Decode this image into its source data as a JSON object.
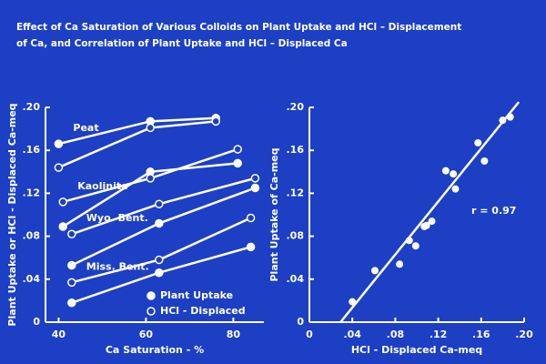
{
  "title": [
    "Effect of Ca Saturation of Various Colloids on Plant Uptake and HCl – Displacement",
    "of Ca, and Correlation of Plant Uptake and HCl – Displaced Ca"
  ],
  "chart_data": [
    {
      "type": "line",
      "xlabel": "Ca Saturation - %",
      "ylabel": "Plant Uptake or HCl - Displaced Ca-meq",
      "xlim": [
        37,
        87
      ],
      "xticks": [
        40,
        60,
        80
      ],
      "ylim": [
        0,
        0.2
      ],
      "yticks": [
        0,
        {
          "value": 0.04,
          "label": ".04"
        },
        {
          "value": 0.08,
          "label": ".08"
        },
        {
          "value": 0.12,
          "label": ".12"
        },
        {
          "value": 0.16,
          "label": ".16"
        },
        {
          "value": 0.2,
          "label": ".20"
        }
      ],
      "color": "#ffffff",
      "legend": {
        "plant_uptake": "Plant Uptake",
        "hcl_displaced": "HCl - Displaced"
      },
      "colloids": [
        {
          "name": "Peat",
          "x": [
            40,
            61,
            76
          ],
          "plant_uptake": [
            0.166,
            0.187,
            0.19
          ],
          "hcl_displaced": [
            0.144,
            0.181,
            0.187
          ]
        },
        {
          "name": "Kaolinite",
          "x": [
            41,
            61,
            81
          ],
          "plant_uptake": [
            0.089,
            0.14,
            0.148
          ],
          "hcl_displaced": [
            0.112,
            0.134,
            0.161
          ]
        },
        {
          "name": "Wyo. Bent.",
          "x": [
            43,
            63,
            85
          ],
          "plant_uptake": [
            0.053,
            0.092,
            0.125
          ],
          "hcl_displaced": [
            0.082,
            0.11,
            0.134
          ]
        },
        {
          "name": "Miss. Bent.",
          "x": [
            43,
            63,
            84
          ],
          "plant_uptake": [
            0.018,
            0.046,
            0.07
          ],
          "hcl_displaced": [
            0.037,
            0.058,
            0.097
          ]
        }
      ]
    },
    {
      "type": "scatter",
      "xlabel": "HCl - Displaced Ca-meq",
      "ylabel": "Plant Uptake of Ca-meq",
      "xlim": [
        0,
        0.2
      ],
      "xticks": [
        0,
        {
          "value": 0.04,
          "label": ".04"
        },
        {
          "value": 0.08,
          "label": ".08"
        },
        {
          "value": 0.12,
          "label": ".12"
        },
        {
          "value": 0.16,
          "label": ".16"
        },
        {
          "value": 0.2,
          "label": ".20"
        }
      ],
      "ylim": [
        0,
        0.2
      ],
      "yticks": [
        0,
        {
          "value": 0.04,
          "label": ".04"
        },
        {
          "value": 0.08,
          "label": ".08"
        },
        {
          "value": 0.12,
          "label": ".12"
        },
        {
          "value": 0.16,
          "label": ".16"
        },
        {
          "value": 0.2,
          "label": ".20"
        }
      ],
      "color": "#ffffff",
      "x": [
        0.04,
        0.061,
        0.084,
        0.093,
        0.099,
        0.107,
        0.109,
        0.114,
        0.127,
        0.134,
        0.136,
        0.157,
        0.163,
        0.18,
        0.187
      ],
      "values": [
        0.019,
        0.048,
        0.054,
        0.076,
        0.071,
        0.089,
        0.09,
        0.094,
        0.141,
        0.138,
        0.124,
        0.167,
        0.15,
        0.188,
        0.191
      ],
      "fit_line": {
        "x": [
          0.029,
          0.195
        ],
        "values": [
          0,
          0.205
        ]
      },
      "annotation": "r = 0.97"
    }
  ]
}
